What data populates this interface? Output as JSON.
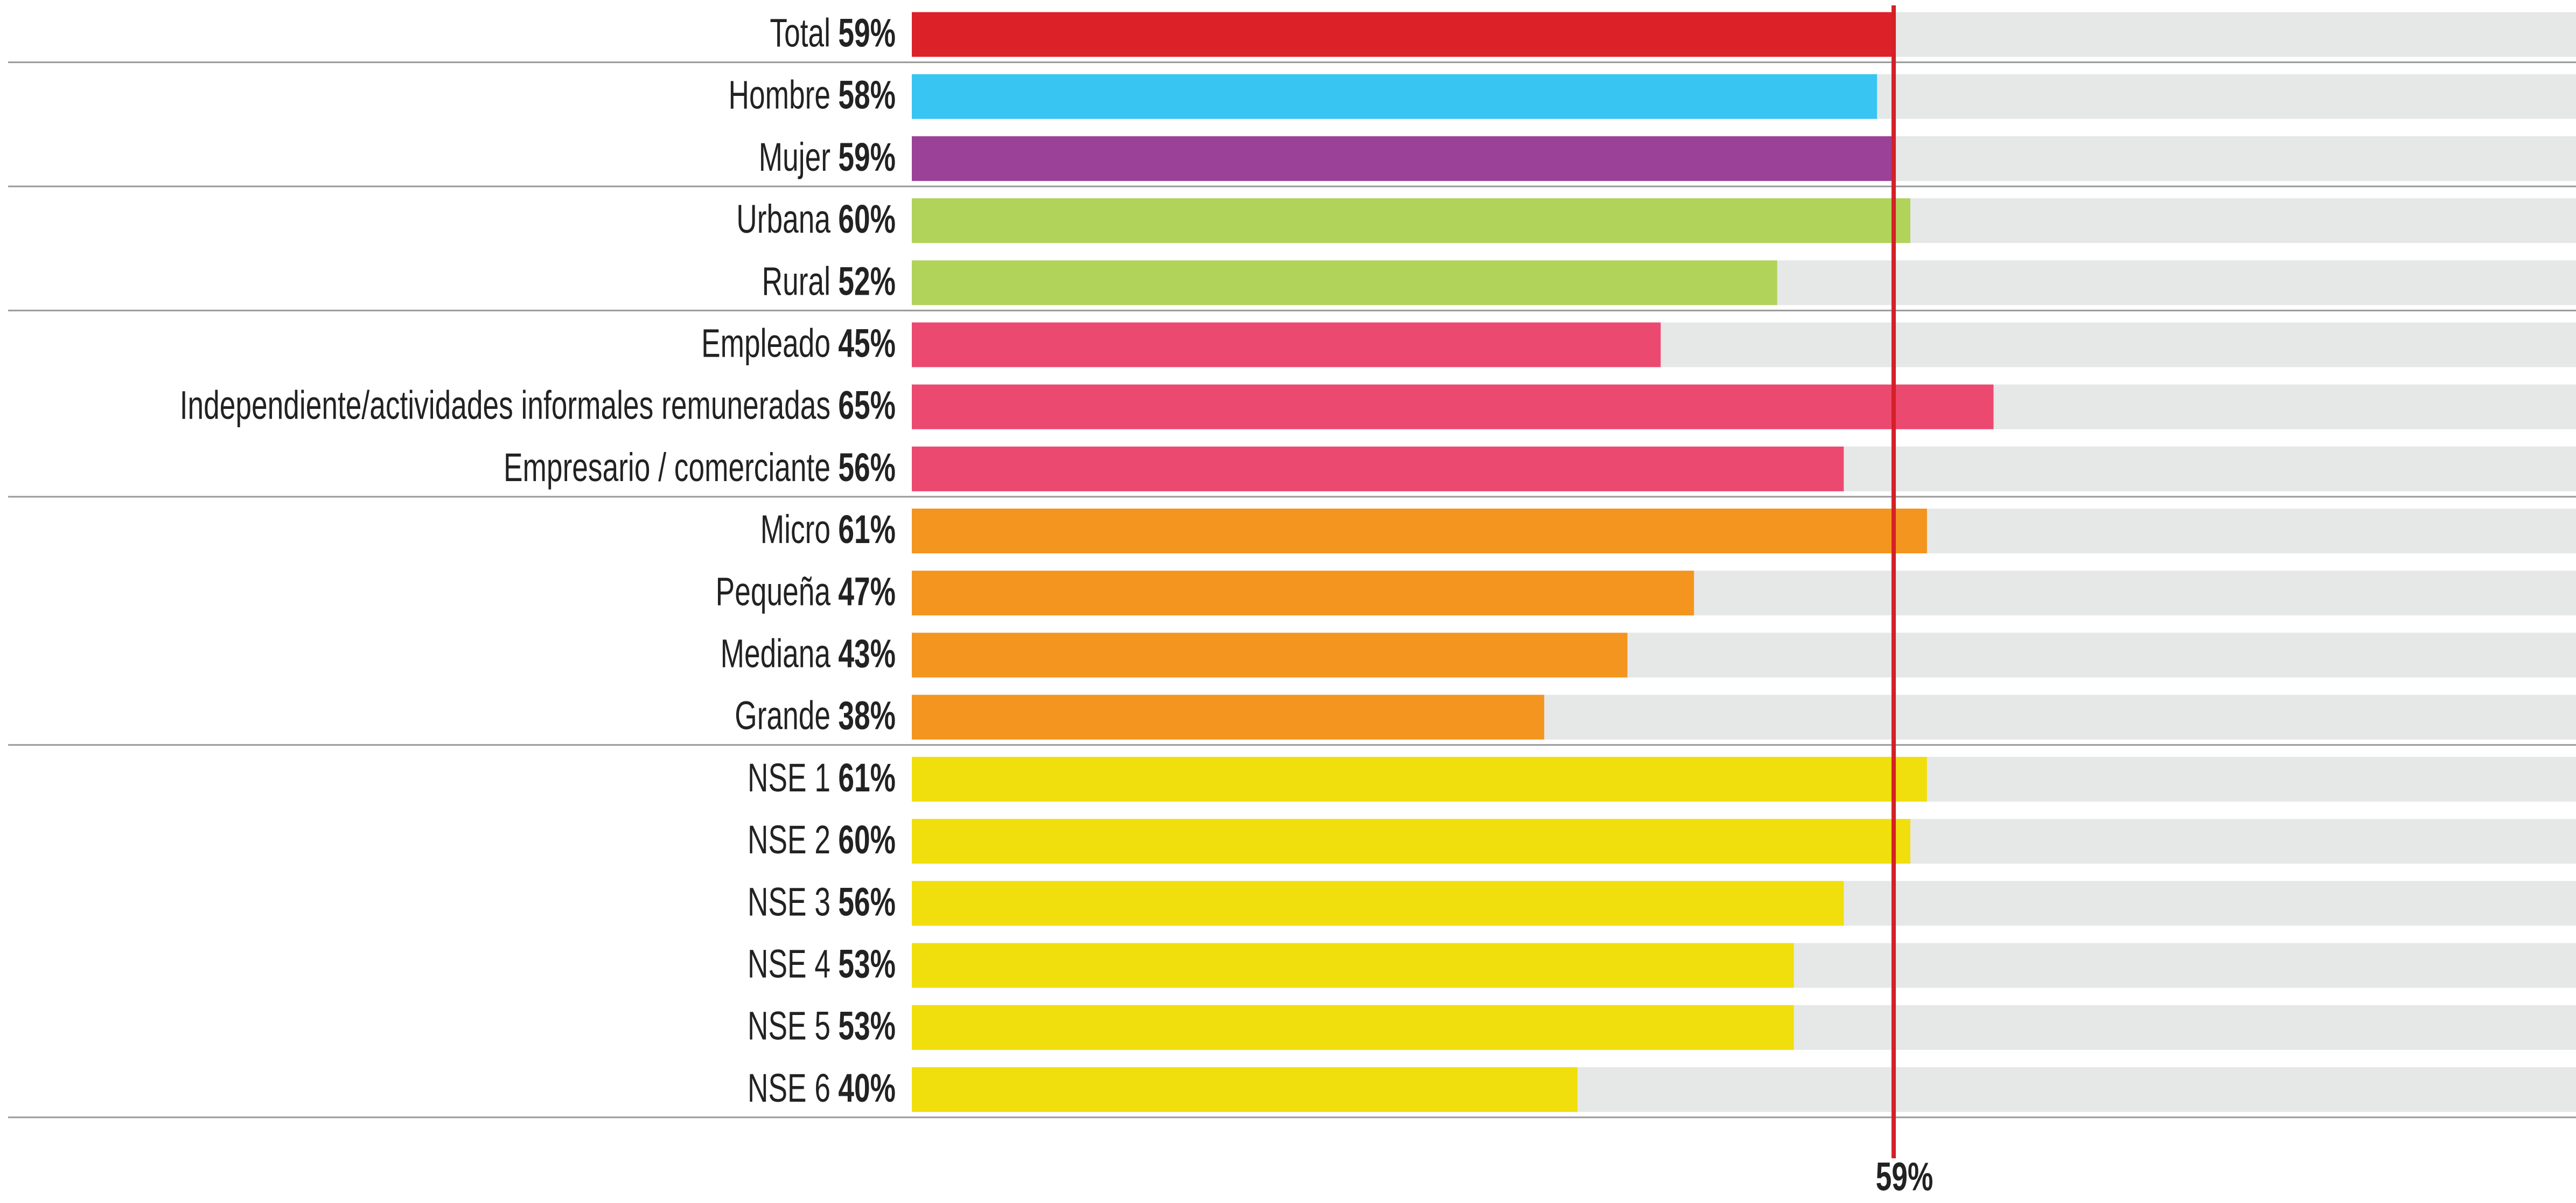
{
  "chart_data": {
    "type": "bar",
    "orientation": "horizontal",
    "categories": [
      "Total",
      "Hombre",
      "Mujer",
      "Urbana",
      "Rural",
      "Empleado",
      "Independiente/actividades informales remuneradas",
      "Empresario / comerciante",
      "Micro",
      "Pequeña",
      "Mediana",
      "Grande",
      "NSE 1",
      "NSE 2",
      "NSE 3",
      "NSE 4",
      "NSE 5",
      "NSE 6"
    ],
    "values": [
      59,
      58,
      59,
      60,
      52,
      45,
      65,
      56,
      61,
      47,
      43,
      38,
      61,
      60,
      56,
      53,
      53,
      40
    ],
    "value_labels": [
      "59%",
      "58%",
      "59%",
      "60%",
      "52%",
      "45%",
      "65%",
      "56%",
      "61%",
      "47%",
      "43%",
      "38%",
      "61%",
      "60%",
      "56%",
      "53%",
      "53%",
      "40%"
    ],
    "colors": [
      "#dc2128",
      "#38c5f2",
      "#9b4197",
      "#b1d35a",
      "#b1d35a",
      "#ec4970",
      "#ec4970",
      "#ec4970",
      "#f3951e",
      "#f3951e",
      "#f3951e",
      "#f3951e",
      "#f0df0c",
      "#f0df0c",
      "#f0df0c",
      "#f0df0c",
      "#f0df0c",
      "#f0df0c"
    ],
    "track_color": "#e6e7e7",
    "xlim": [
      0,
      100
    ],
    "reference": {
      "value": 59,
      "label": "59%",
      "color": "#d42027"
    }
  }
}
